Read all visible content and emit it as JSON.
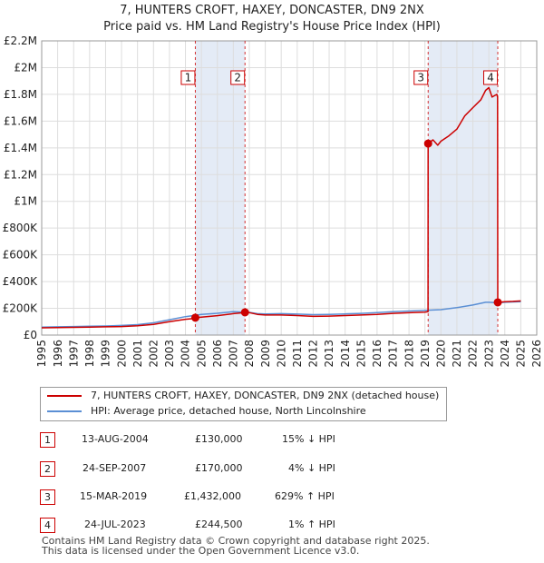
{
  "title_line1": "7, HUNTERS CROFT, HAXEY, DONCASTER, DN9 2NX",
  "title_line2": "Price paid vs. HM Land Registry's House Price Index (HPI)",
  "colors": {
    "price": "#cc0000",
    "hpi": "#5b8fd4",
    "shade": "#dde6f4",
    "grid": "#dddddd"
  },
  "chart_data": {
    "type": "line",
    "xlim": [
      1995,
      2026
    ],
    "ylim": [
      0,
      2200000
    ],
    "x_ticks": [
      "1995",
      "1996",
      "1997",
      "1998",
      "1999",
      "2000",
      "2001",
      "2002",
      "2003",
      "2004",
      "2005",
      "2006",
      "2007",
      "2008",
      "2009",
      "2010",
      "2011",
      "2012",
      "2013",
      "2014",
      "2015",
      "2016",
      "2017",
      "2018",
      "2019",
      "2020",
      "2021",
      "2022",
      "2023",
      "2024",
      "2025",
      "2026"
    ],
    "y_ticks": [
      {
        "value": 0,
        "label": "£0"
      },
      {
        "value": 200000,
        "label": "£200K"
      },
      {
        "value": 400000,
        "label": "£400K"
      },
      {
        "value": 600000,
        "label": "£600K"
      },
      {
        "value": 800000,
        "label": "£800K"
      },
      {
        "value": 1000000,
        "label": "£1M"
      },
      {
        "value": 1200000,
        "label": "£1.2M"
      },
      {
        "value": 1400000,
        "label": "£1.4M"
      },
      {
        "value": 1600000,
        "label": "£1.6M"
      },
      {
        "value": 1800000,
        "label": "£1.8M"
      },
      {
        "value": 2000000,
        "label": "£2M"
      },
      {
        "value": 2200000,
        "label": "£2.2M"
      }
    ],
    "grid": true,
    "legend_position": "bottom",
    "shaded_periods": [
      [
        2004.62,
        2007.73
      ],
      [
        2019.2,
        2023.56
      ]
    ],
    "series": [
      {
        "name": "7, HUNTERS CROFT, HAXEY, DONCASTER, DN9 2NX (detached house)",
        "color": "#cc0000",
        "x": [
          1995,
          1996,
          1997,
          1998,
          1999,
          2000,
          2001,
          2002,
          2003,
          2004,
          2004.6,
          2004.62,
          2005,
          2006,
          2007,
          2007.7,
          2007.73,
          2008,
          2008.5,
          2009,
          2010,
          2011,
          2012,
          2013,
          2014,
          2015,
          2016,
          2017,
          2018,
          2019,
          2019.19,
          2019.2,
          2019.5,
          2019.8,
          2020,
          2020.5,
          2021,
          2021.5,
          2022,
          2022.5,
          2022.8,
          2023,
          2023.2,
          2023.5,
          2023.55,
          2023.56,
          2024,
          2024.5,
          2025
        ],
        "y": [
          54000,
          56000,
          58000,
          60000,
          62000,
          64000,
          70000,
          80000,
          100000,
          118000,
          125000,
          130000,
          134000,
          145000,
          160000,
          168000,
          170000,
          168000,
          155000,
          150000,
          150000,
          146000,
          140000,
          142000,
          146000,
          150000,
          155000,
          162000,
          167000,
          172000,
          175000,
          1432000,
          1460000,
          1420000,
          1450000,
          1490000,
          1540000,
          1640000,
          1700000,
          1760000,
          1830000,
          1850000,
          1780000,
          1800000,
          1780000,
          244500,
          250000,
          252000,
          255000
        ]
      },
      {
        "name": "HPI: Average price, detached house, North Lincolnshire",
        "color": "#5b8fd4",
        "x": [
          1995,
          1996,
          1997,
          1998,
          1999,
          2000,
          2001,
          2002,
          2003,
          2004,
          2005,
          2006,
          2007,
          2008,
          2008.5,
          2009,
          2010,
          2011,
          2012,
          2013,
          2014,
          2015,
          2016,
          2017,
          2018,
          2019,
          2020,
          2021,
          2022,
          2022.8,
          2023,
          2023.5,
          2024,
          2024.5,
          2025
        ],
        "y": [
          60000,
          62000,
          64000,
          66000,
          68000,
          72000,
          78000,
          92000,
          115000,
          138000,
          155000,
          163000,
          175000,
          170000,
          160000,
          158000,
          160000,
          157000,
          153000,
          155000,
          158000,
          162000,
          168000,
          175000,
          180000,
          185000,
          190000,
          205000,
          225000,
          245000,
          245000,
          242000,
          245000,
          248000,
          250000
        ]
      }
    ],
    "sales": [
      {
        "label": "1",
        "date": "13-AUG-2004",
        "x": 2004.62,
        "price": "£130,000",
        "value": 130000,
        "hpi": "15% ↓ HPI"
      },
      {
        "label": "2",
        "date": "24-SEP-2007",
        "x": 2007.73,
        "price": "£170,000",
        "value": 170000,
        "hpi": "4% ↓ HPI"
      },
      {
        "label": "3",
        "date": "15-MAR-2019",
        "x": 2019.2,
        "price": "£1,432,000",
        "value": 1432000,
        "hpi": "629% ↑ HPI"
      },
      {
        "label": "4",
        "date": "24-JUL-2023",
        "x": 2023.56,
        "price": "£244,500",
        "value": 244500,
        "hpi": "1% ↑ HPI"
      }
    ]
  },
  "legend": {
    "price_label": "7, HUNTERS CROFT, HAXEY, DONCASTER, DN9 2NX (detached house)",
    "hpi_label": "HPI: Average price, detached house, North Lincolnshire"
  },
  "footer": {
    "line1": "Contains HM Land Registry data © Crown copyright and database right 2025.",
    "line2": "This data is licensed under the Open Government Licence v3.0."
  }
}
